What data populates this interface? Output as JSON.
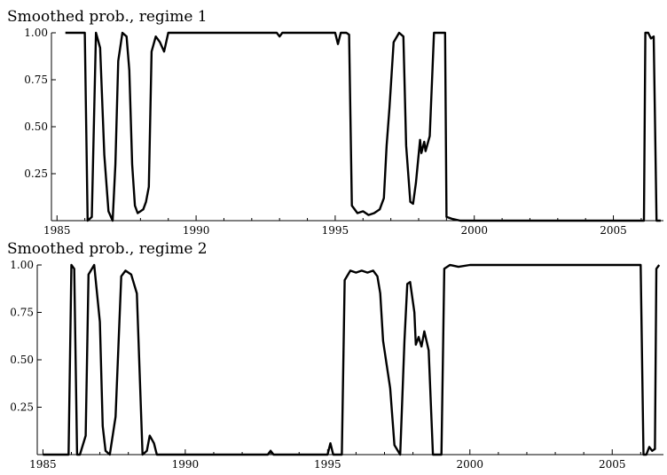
{
  "chart_data": [
    {
      "type": "line",
      "title": "Smoothed prob., regime 1",
      "xlabel": "",
      "ylabel": "",
      "xlim": [
        1984.8,
        2006.8
      ],
      "ylim": [
        0,
        1.0
      ],
      "x_ticks": [
        1985,
        1990,
        1995,
        2000,
        2005
      ],
      "x_tick_labels": [
        "1985",
        "1990",
        "1995",
        "2000",
        "2005"
      ],
      "y_ticks": [
        0.25,
        0.5,
        0.75,
        1.0
      ],
      "y_tick_labels": [
        "0.25",
        "0.50",
        "0.75",
        "1.00"
      ],
      "grid": false,
      "series": [
        {
          "x": [
            1985.3,
            1986.0,
            1986.1,
            1986.25,
            1986.4,
            1986.55,
            1986.7,
            1986.85,
            1987.0,
            1987.1,
            1987.2,
            1987.35,
            1987.5,
            1987.6,
            1987.7,
            1987.8,
            1987.9,
            1988.0,
            1988.1,
            1988.2,
            1988.3,
            1988.4,
            1988.55,
            1988.7,
            1988.85,
            1989.0,
            1989.5,
            1990,
            1991,
            1992,
            1992.9,
            1993.0,
            1993.1,
            1994,
            1995.0,
            1995.1,
            1995.2,
            1995.4,
            1995.5,
            1995.6,
            1995.8,
            1996.0,
            1996.2,
            1996.4,
            1996.6,
            1996.75,
            1996.85,
            1996.95,
            1997.1,
            1997.3,
            1997.45,
            1997.55,
            1997.7,
            1997.8,
            1997.9,
            1998.05,
            1998.1,
            1998.2,
            1998.25,
            1998.4,
            1998.55,
            1998.7,
            1998.85,
            1998.95,
            1999.0,
            1999.2,
            1999.5,
            2000,
            2001,
            2002,
            2003,
            2004,
            2005,
            2006.0,
            2006.1,
            2006.15,
            2006.25,
            2006.35,
            2006.45,
            2006.55,
            2006.7
          ],
          "values": [
            1.0,
            1.0,
            0.0,
            0.02,
            1.0,
            0.92,
            0.35,
            0.05,
            0.0,
            0.3,
            0.85,
            1.0,
            0.98,
            0.8,
            0.3,
            0.08,
            0.04,
            0.05,
            0.06,
            0.1,
            0.18,
            0.9,
            0.98,
            0.95,
            0.9,
            1.0,
            1.0,
            1.0,
            1.0,
            1.0,
            1.0,
            0.98,
            1.0,
            1.0,
            1.0,
            0.94,
            1.0,
            1.0,
            0.99,
            0.08,
            0.04,
            0.05,
            0.03,
            0.04,
            0.06,
            0.12,
            0.4,
            0.6,
            0.95,
            1.0,
            0.98,
            0.4,
            0.1,
            0.09,
            0.2,
            0.43,
            0.36,
            0.42,
            0.37,
            0.45,
            1.0,
            1.0,
            1.0,
            1.0,
            0.02,
            0.01,
            0.0,
            0.0,
            0.0,
            0.0,
            0.0,
            0.0,
            0.0,
            0.0,
            0.0,
            1.0,
            1.0,
            0.97,
            0.98,
            0.0,
            0.0
          ]
        }
      ]
    },
    {
      "type": "line",
      "title": "Smoothed prob., regime 2",
      "xlabel": "",
      "ylabel": "",
      "xlim": [
        1984.8,
        2006.8
      ],
      "ylim": [
        0,
        1.0
      ],
      "x_ticks": [
        1985,
        1990,
        1995,
        2000,
        2005
      ],
      "x_tick_labels": [
        "1985",
        "1990",
        "1995",
        "2000",
        "2005"
      ],
      "y_ticks": [
        0.25,
        0.5,
        0.75,
        1.0
      ],
      "y_tick_labels": [
        "0.25",
        "0.50",
        "0.75",
        "1.00"
      ],
      "grid": false,
      "series": [
        {
          "x": [
            1985.0,
            1985.9,
            1986.0,
            1986.1,
            1986.2,
            1986.3,
            1986.5,
            1986.6,
            1986.8,
            1987.0,
            1987.1,
            1987.2,
            1987.35,
            1987.55,
            1987.75,
            1987.9,
            1988.1,
            1988.3,
            1988.5,
            1988.65,
            1988.75,
            1988.9,
            1989.0,
            1989.1,
            1990,
            1992.9,
            1993.0,
            1993.1,
            1995.0,
            1995.1,
            1995.2,
            1995.5,
            1995.6,
            1995.8,
            1996.0,
            1996.2,
            1996.4,
            1996.6,
            1996.75,
            1996.85,
            1996.95,
            1997.1,
            1997.2,
            1997.35,
            1997.55,
            1997.7,
            1997.8,
            1997.9,
            1998.05,
            1998.1,
            1998.2,
            1998.3,
            1998.4,
            1998.55,
            1998.7,
            1998.85,
            1999.0,
            1999.1,
            1999.3,
            1999.6,
            2000,
            2001,
            2002,
            2003,
            2004,
            2005,
            2006.0,
            2006.1,
            2006.2,
            2006.3,
            2006.4,
            2006.5,
            2006.55,
            2006.65
          ],
          "values": [
            0.0,
            0.0,
            1.0,
            0.98,
            0.0,
            0.0,
            0.1,
            0.95,
            1.0,
            0.7,
            0.15,
            0.02,
            0.0,
            0.2,
            0.94,
            0.97,
            0.95,
            0.85,
            0.0,
            0.02,
            0.1,
            0.06,
            0.0,
            0.0,
            0.0,
            0.0,
            0.02,
            0.0,
            0.0,
            0.06,
            0.0,
            0.0,
            0.92,
            0.97,
            0.96,
            0.97,
            0.96,
            0.97,
            0.94,
            0.85,
            0.6,
            0.45,
            0.35,
            0.05,
            0.0,
            0.6,
            0.9,
            0.91,
            0.75,
            0.58,
            0.62,
            0.57,
            0.65,
            0.55,
            0.0,
            0.0,
            0.0,
            0.98,
            1.0,
            0.99,
            1.0,
            1.0,
            1.0,
            1.0,
            1.0,
            1.0,
            1.0,
            0.0,
            0.0,
            0.04,
            0.02,
            0.03,
            0.98,
            1.0
          ]
        }
      ]
    }
  ]
}
